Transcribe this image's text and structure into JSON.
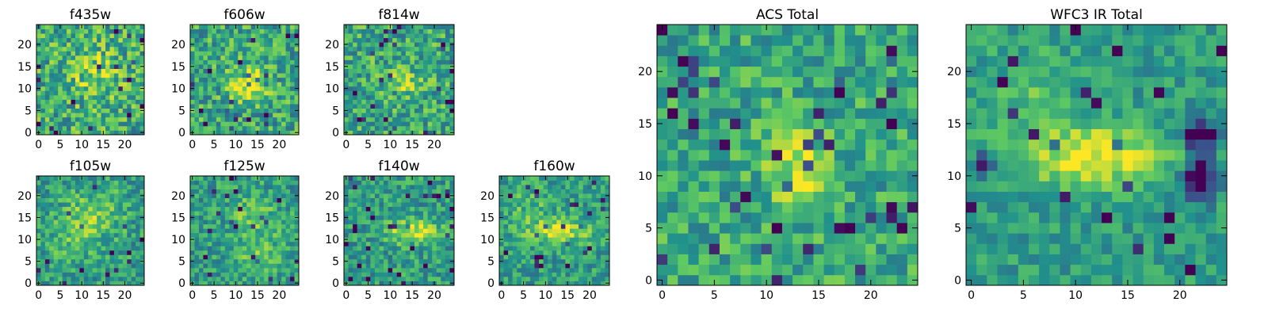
{
  "chart_data": [
    {
      "type": "heatmap",
      "title": "f435w",
      "xticks": [
        0,
        5,
        10,
        15,
        20
      ],
      "yticks": [
        0,
        5,
        10,
        15,
        20
      ],
      "grid": false,
      "colormap": "viridis"
    },
    {
      "type": "heatmap",
      "title": "f606w",
      "xticks": [
        0,
        5,
        10,
        15,
        20
      ],
      "yticks": [
        0,
        5,
        10,
        15,
        20
      ],
      "grid": false,
      "colormap": "viridis"
    },
    {
      "type": "heatmap",
      "title": "f814w",
      "xticks": [
        0,
        5,
        10,
        15,
        20
      ],
      "yticks": [
        0,
        5,
        10,
        15,
        20
      ],
      "grid": false,
      "colormap": "viridis"
    },
    {
      "type": "heatmap",
      "title": "f105w",
      "xticks": [
        0,
        5,
        10,
        15,
        20
      ],
      "yticks": [
        0,
        5,
        10,
        15,
        20
      ],
      "grid": false,
      "colormap": "viridis"
    },
    {
      "type": "heatmap",
      "title": "f125w",
      "xticks": [
        0,
        5,
        10,
        15,
        20
      ],
      "yticks": [
        0,
        5,
        10,
        15,
        20
      ],
      "grid": false,
      "colormap": "viridis"
    },
    {
      "type": "heatmap",
      "title": "f140w",
      "xticks": [
        0,
        5,
        10,
        15,
        20
      ],
      "yticks": [
        0,
        5,
        10,
        15,
        20
      ],
      "grid": false,
      "colormap": "viridis"
    },
    {
      "type": "heatmap",
      "title": "f160w",
      "xticks": [
        0,
        5,
        10,
        15,
        20
      ],
      "yticks": [
        0,
        5,
        10,
        15,
        20
      ],
      "grid": false,
      "colormap": "viridis"
    },
    {
      "type": "heatmap",
      "title": "ACS Total",
      "xticks": [
        0,
        5,
        10,
        15,
        20
      ],
      "yticks": [
        0,
        5,
        10,
        15,
        20
      ],
      "grid": false,
      "colormap": "viridis"
    },
    {
      "type": "heatmap",
      "title": "WFC3 IR Total",
      "xticks": [
        0,
        5,
        10,
        15,
        20
      ],
      "yticks": [
        0,
        5,
        10,
        15,
        20
      ],
      "grid": false,
      "colormap": "viridis"
    }
  ],
  "colormap": {
    "name": "viridis",
    "stops": [
      "#440154",
      "#3b528b",
      "#21918c",
      "#5ec962",
      "#fde725"
    ]
  }
}
